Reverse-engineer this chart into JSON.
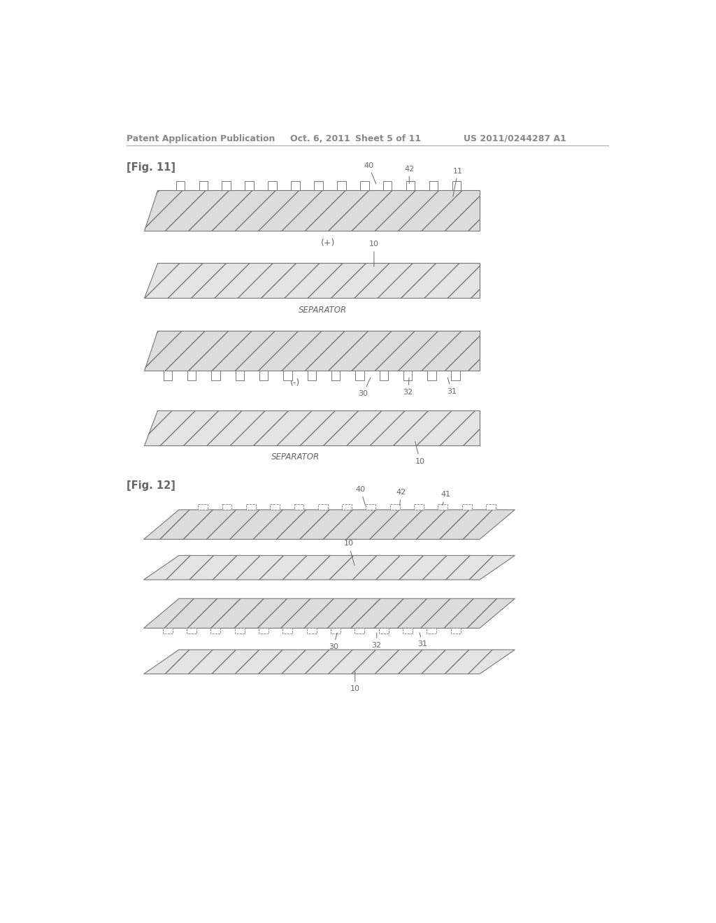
{
  "bg_color": "#ffffff",
  "header_text": "Patent Application Publication",
  "header_date": "Oct. 6, 2011",
  "header_sheet": "Sheet 5 of 11",
  "header_patent": "US 2011/0244287 A1",
  "fig11_label": "[Fig. 11]",
  "fig12_label": "[Fig. 12]",
  "line_color": "#777777",
  "electrode_fill": "#dcdcdc",
  "separator_fill": "#e4e4e4",
  "text_color": "#666666",
  "header_color": "#888888"
}
